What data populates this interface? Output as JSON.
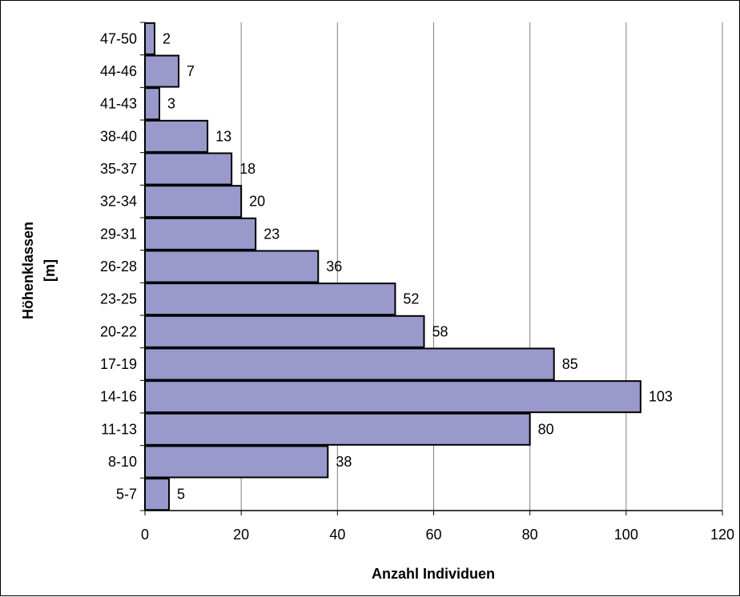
{
  "chart_data": {
    "type": "bar",
    "orientation": "horizontal",
    "categories": [
      "5-7",
      "8-10",
      "11-13",
      "14-16",
      "17-19",
      "20-22",
      "23-25",
      "26-28",
      "29-31",
      "32-34",
      "35-37",
      "38-40",
      "41-43",
      "44-46",
      "47-50"
    ],
    "values": [
      5,
      38,
      80,
      103,
      85,
      58,
      52,
      36,
      23,
      20,
      18,
      13,
      3,
      7,
      2
    ],
    "xlabel": "Anzahl Individuen",
    "ylabel": [
      "Höhenklassen",
      "[m]"
    ],
    "xlim": [
      0,
      120
    ],
    "xticks": [
      0,
      20,
      40,
      60,
      80,
      100,
      120
    ],
    "grid": "vertical",
    "legend": "none",
    "colors": {
      "bar_fill": "#9999cc",
      "bar_stroke": "#000000",
      "grid": "#808080"
    }
  }
}
